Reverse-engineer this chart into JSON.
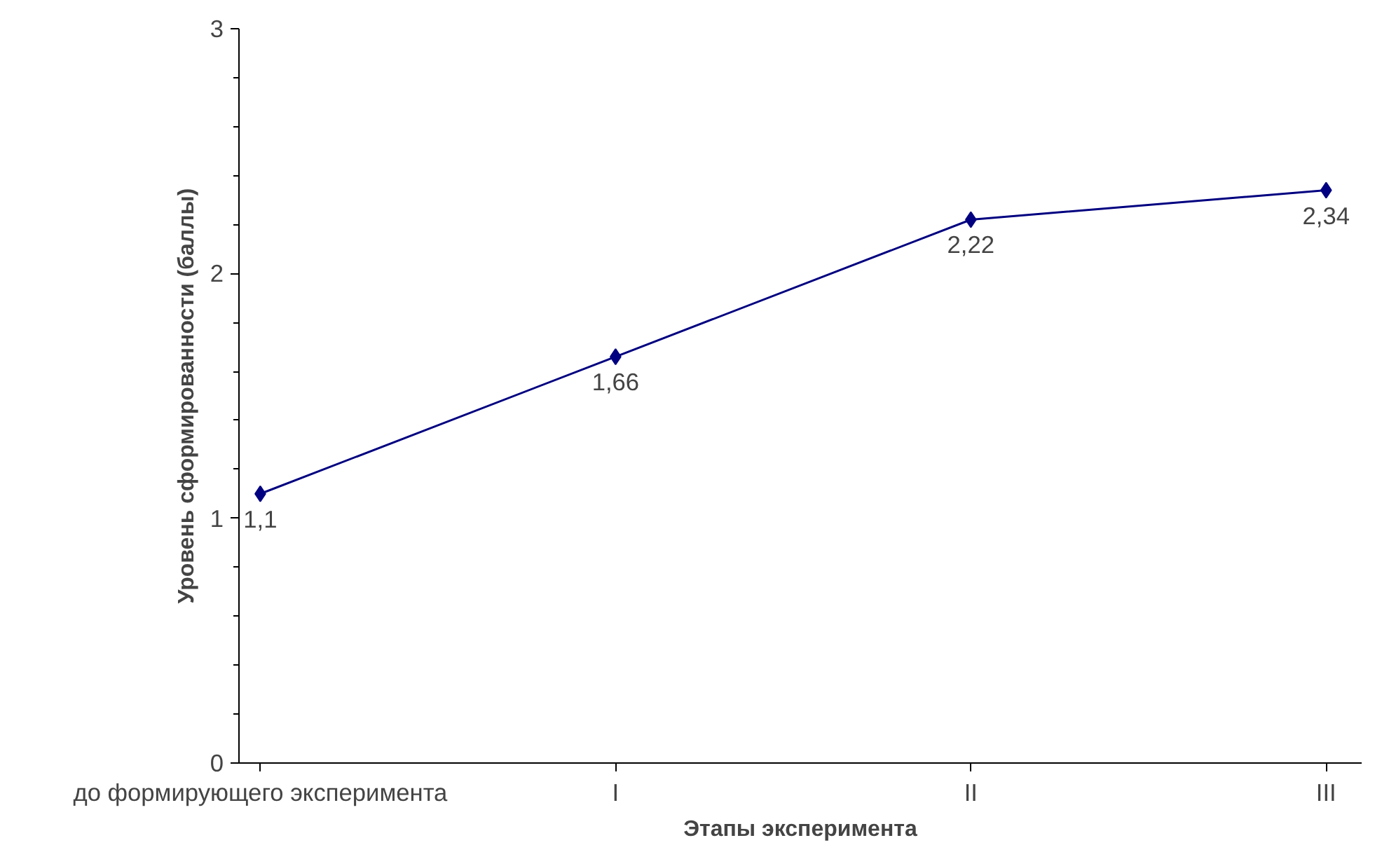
{
  "chart_data": {
    "type": "line",
    "xlabel": "Этапы эксперимента",
    "ylabel": "Уровень сформированности (баллы)",
    "categories": [
      "до формирующего эксперимента",
      "I",
      "II",
      "III"
    ],
    "series": [
      {
        "color": "#000080",
        "values": [
          1.1,
          1.66,
          2.22,
          2.34
        ],
        "value_labels": [
          "1,1",
          "1,66",
          "2,22",
          "2,34"
        ]
      }
    ],
    "ylim": [
      0,
      3
    ],
    "yticks": [
      0,
      1,
      2,
      3
    ],
    "grid": false,
    "marker": "diamond",
    "line_style": "solid"
  }
}
